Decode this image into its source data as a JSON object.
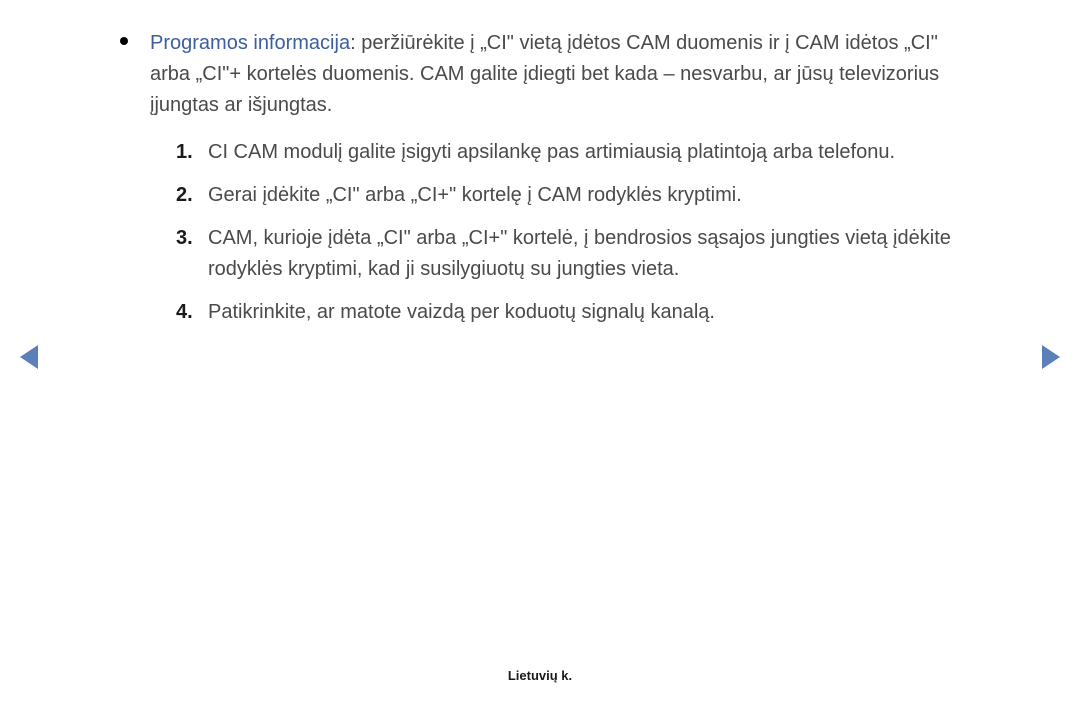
{
  "bullet": {
    "highlight": "Programos informacija",
    "text": ": peržiūrėkite į „CI\" vietą įdėtos CAM duomenis ir į CAM idėtos „CI\" arba „CI\"+ kortelės duomenis. CAM galite įdiegti bet kada – nesvarbu, ar jūsų televizorius įjungtas ar išjungtas."
  },
  "items": [
    {
      "num": "1.",
      "text": "CI CAM modulį galite įsigyti apsilankę pas artimiausią platintoją arba telefonu."
    },
    {
      "num": "2.",
      "text": "Gerai įdėkite „CI\" arba „CI+\" kortelę į CAM rodyklės kryptimi."
    },
    {
      "num": "3.",
      "text": "CAM, kurioje įdėta „CI\" arba „CI+\" kortelė, į bendrosios sąsajos jungties vietą įdėkite rodyklės kryptimi, kad ji susilygiuotų su jungties vieta."
    },
    {
      "num": "4.",
      "text": "Patikrinkite, ar matote vaizdą per koduotų signalų kanalą."
    }
  ],
  "footer": "Lietuvių k."
}
